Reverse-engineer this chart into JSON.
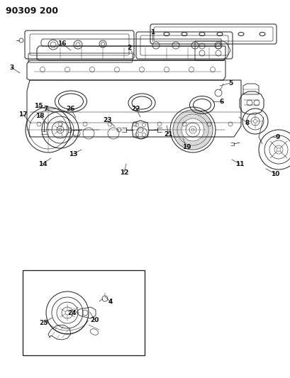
{
  "title": "90309 200",
  "bg_color": "#ffffff",
  "line_color": "#1a1a1a",
  "label_fontsize": 6.5,
  "fig_width": 4.09,
  "fig_height": 5.33,
  "dpi": 100,
  "labels": [
    [
      "1",
      215,
      475,
      215,
      487
    ],
    [
      "2",
      190,
      455,
      182,
      465
    ],
    [
      "3",
      28,
      430,
      16,
      438
    ],
    [
      "5",
      310,
      412,
      325,
      416
    ],
    [
      "6",
      300,
      390,
      313,
      390
    ],
    [
      "7",
      82,
      380,
      65,
      380
    ],
    [
      "8",
      337,
      368,
      349,
      360
    ],
    [
      "9",
      382,
      340,
      392,
      340
    ],
    [
      "10",
      375,
      295,
      388,
      288
    ],
    [
      "11",
      327,
      308,
      338,
      302
    ],
    [
      "12",
      178,
      302,
      175,
      290
    ],
    [
      "13",
      115,
      322,
      103,
      316
    ],
    [
      "14",
      72,
      310,
      60,
      302
    ],
    [
      "15",
      75,
      375,
      54,
      384
    ],
    [
      "16",
      100,
      462,
      87,
      472
    ],
    [
      "17",
      43,
      360,
      32,
      372
    ],
    [
      "18",
      67,
      358,
      56,
      370
    ],
    [
      "19",
      258,
      338,
      263,
      326
    ],
    [
      "21",
      235,
      356,
      238,
      344
    ],
    [
      "22",
      198,
      368,
      192,
      380
    ],
    [
      "23",
      162,
      355,
      151,
      363
    ],
    [
      "26",
      107,
      367,
      100,
      379
    ],
    [
      "4",
      148,
      115,
      156,
      107
    ],
    [
      "20",
      127,
      93,
      133,
      82
    ],
    [
      "24",
      110,
      100,
      102,
      91
    ],
    [
      "25",
      73,
      85,
      62,
      77
    ]
  ]
}
